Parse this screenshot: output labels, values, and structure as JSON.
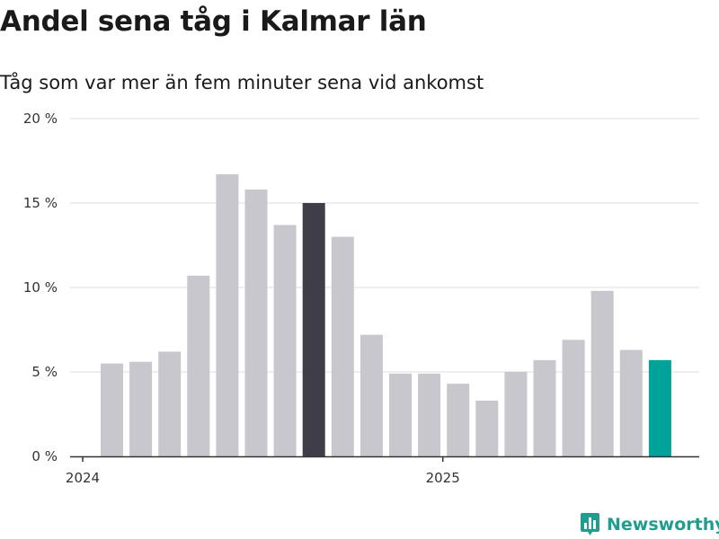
{
  "title": "Andel sena tåg i Kalmar län",
  "subtitle": "Tåg som var mer än fem minuter sena vid ankomst",
  "brand": {
    "name": "Newsworthy",
    "icon": "newsworthy-logo-icon",
    "color": "#1f9d8f"
  },
  "chart_data": {
    "type": "bar",
    "ylim": [
      0,
      20
    ],
    "yticks": [
      0,
      5,
      10,
      15,
      20
    ],
    "ytick_labels": [
      "0 %",
      "5 %",
      "10 %",
      "15 %",
      "20 %"
    ],
    "xtick_labels": [
      {
        "label": "2024",
        "index": 0
      },
      {
        "label": "2025",
        "index": 12
      }
    ],
    "grid": true,
    "categories": [
      "2024-01",
      "2024-02",
      "2024-03",
      "2024-04",
      "2024-05",
      "2024-06",
      "2024-07",
      "2024-08",
      "2024-09",
      "2024-10",
      "2024-11",
      "2024-12",
      "2025-01",
      "2025-02",
      "2025-03",
      "2025-04",
      "2025-05",
      "2025-06",
      "2025-07",
      "2025-08"
    ],
    "values": [
      5.5,
      5.6,
      6.2,
      10.7,
      16.7,
      15.8,
      13.7,
      15.0,
      13.0,
      7.2,
      4.9,
      4.9,
      4.3,
      3.3,
      5.0,
      5.7,
      6.9,
      9.8,
      6.3,
      5.7
    ],
    "colors": {
      "default": "#c8c7cd",
      "highlight": "#3f3d48",
      "latest": "#00a39a",
      "grid": "#dddddd",
      "axis": "#333333"
    },
    "highlight_index": 7,
    "latest_index": 19
  }
}
